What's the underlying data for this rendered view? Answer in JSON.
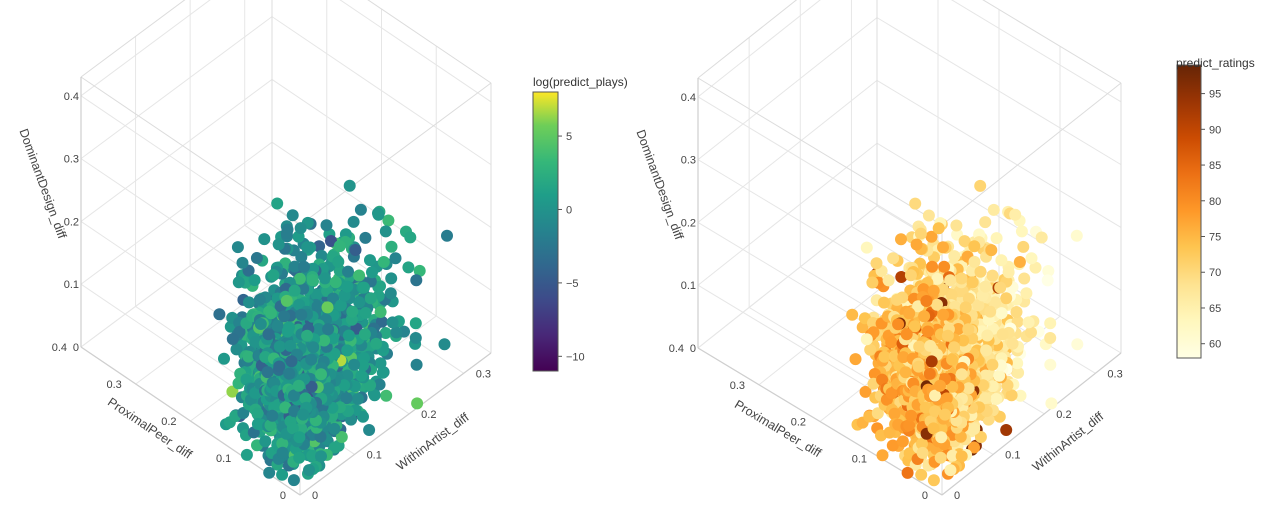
{
  "chart_data": [
    {
      "type": "scatter",
      "title": "",
      "xlabel": "ProximalPeer_diff",
      "ylabel": "WithinArtist_diff",
      "zlabel": "DominantDesign_diff",
      "x_range": [
        0,
        0.4
      ],
      "y_range": [
        0,
        0.35
      ],
      "z_range": [
        0,
        0.43
      ],
      "x_ticks": [
        "0",
        "0.1",
        "0.2",
        "0.3",
        "0.4"
      ],
      "y_ticks": [
        "0",
        "0.1",
        "0.2",
        "0.3"
      ],
      "z_ticks": [
        "0",
        "0.1",
        "0.2",
        "0.3",
        "0.4"
      ],
      "grid": true,
      "colorbar": {
        "title": "log(predict_plays)",
        "colorscale": "viridis",
        "range": [
          -11,
          8
        ],
        "ticks": [
          "5",
          "0",
          "−5",
          "−10"
        ],
        "tick_values": [
          5,
          0,
          -5,
          -10
        ]
      },
      "points": "dense cloud of roughly 2000 points; values concentrated at ProximalPeer_diff 0–0.15, WithinArtist_diff 0–0.15, DominantDesign_diff 0–0.3, with sparse outliers reaching DominantDesign_diff ≈ 0.43"
    },
    {
      "type": "scatter",
      "title": "",
      "xlabel": "ProximalPeer_diff",
      "ylabel": "WithinArtist_diff",
      "zlabel": "DominantDesign_diff",
      "x_range": [
        0,
        0.4
      ],
      "y_range": [
        0,
        0.35
      ],
      "z_range": [
        0,
        0.43
      ],
      "x_ticks": [
        "0",
        "0.1",
        "0.2",
        "0.3",
        "0.4"
      ],
      "y_ticks": [
        "0",
        "0.1",
        "0.2",
        "0.3"
      ],
      "z_ticks": [
        "0",
        "0.1",
        "0.2",
        "0.3",
        "0.4"
      ],
      "grid": true,
      "colorbar": {
        "title": "predict_ratings",
        "colorscale": "ylorbr",
        "range": [
          58,
          99
        ],
        "ticks": [
          "95",
          "90",
          "85",
          "80",
          "75",
          "70",
          "65",
          "60"
        ],
        "tick_values": [
          95,
          90,
          85,
          80,
          75,
          70,
          65,
          60
        ]
      },
      "points": "same point cloud as the left panel, colored by predicted rating; most points rated 70–80, lighter (lower) ratings toward larger WithinArtist_diff"
    }
  ]
}
